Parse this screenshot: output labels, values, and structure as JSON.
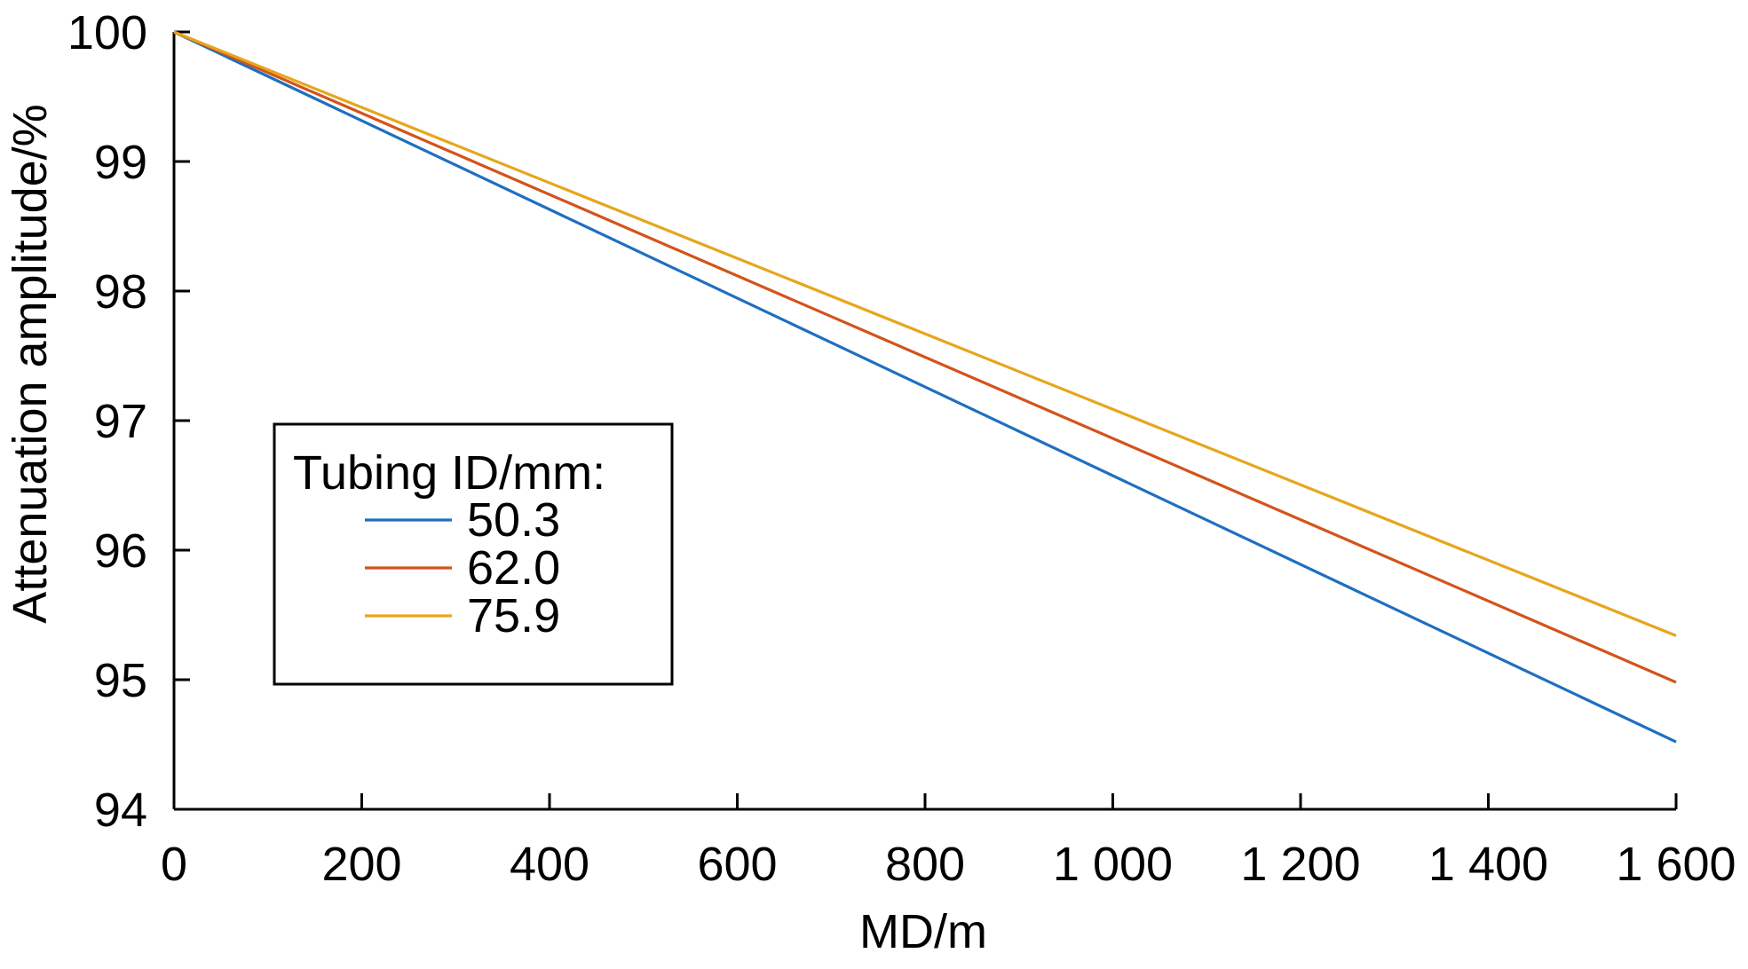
{
  "chart_data": {
    "type": "line",
    "xlabel": "MD/m",
    "ylabel": "Attenuation amplitude/%",
    "xlim": [
      0,
      1600
    ],
    "ylim": [
      94,
      100
    ],
    "x_ticks": [
      0,
      200,
      400,
      600,
      800,
      1000,
      1200,
      1400,
      1600
    ],
    "x_tick_labels": [
      "0",
      "200",
      "400",
      "600",
      "800",
      "1 000",
      "1 200",
      "1 400",
      "1 600"
    ],
    "y_ticks": [
      94,
      95,
      96,
      97,
      98,
      99,
      100
    ],
    "y_tick_labels": [
      "94",
      "95",
      "96",
      "97",
      "98",
      "99",
      "100"
    ],
    "grid": false,
    "legend": {
      "title": "Tubing ID/mm:",
      "placement": "center-left"
    },
    "series": [
      {
        "name": "50.3",
        "color": "#1f6fbf",
        "x": [
          0,
          1600
        ],
        "y": [
          100,
          94.52
        ]
      },
      {
        "name": "62.0",
        "color": "#d2541b",
        "x": [
          0,
          1600
        ],
        "y": [
          100,
          94.98
        ]
      },
      {
        "name": "75.9",
        "color": "#e6a61c",
        "x": [
          0,
          1600
        ],
        "y": [
          100,
          95.34
        ]
      }
    ]
  }
}
